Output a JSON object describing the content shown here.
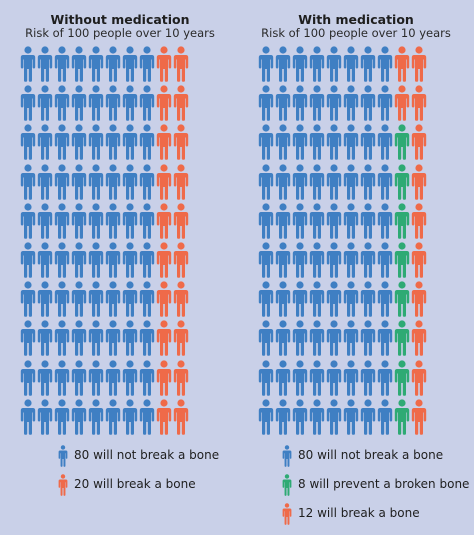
{
  "colors": {
    "background": "#c9d0e8",
    "no_break": "#3f7fc3",
    "break": "#ef6a49",
    "prevented": "#2eaa74"
  },
  "left": {
    "title": "Without medication",
    "subtitle": "Risk of 100 people over 10 years",
    "grid": {
      "rows": 10,
      "cols": 10,
      "no_break_per_row": 8,
      "prevented_per_row": 0,
      "break_per_row": 2
    },
    "legend": [
      {
        "label": "80 will not break a bone",
        "color_key": "no_break",
        "icon": "person-icon"
      },
      {
        "label": "20 will break a bone",
        "color_key": "break",
        "icon": "person-icon"
      }
    ]
  },
  "right": {
    "title": "With medication",
    "subtitle": "Risk of 100 people over 10 years",
    "grid": {
      "rows": 10,
      "cols": 10,
      "no_break_per_row": 8,
      "break_in_first_two_rows": 2,
      "prevented_in_other_rows": 1,
      "break_in_other_rows": 1
    },
    "legend": [
      {
        "label": "80 will not break a bone",
        "color_key": "no_break",
        "icon": "person-icon"
      },
      {
        "label": "8 will prevent a broken bone",
        "color_key": "prevented",
        "icon": "person-icon"
      },
      {
        "label": "12 will break a bone",
        "color_key": "break",
        "icon": "person-icon"
      }
    ]
  }
}
